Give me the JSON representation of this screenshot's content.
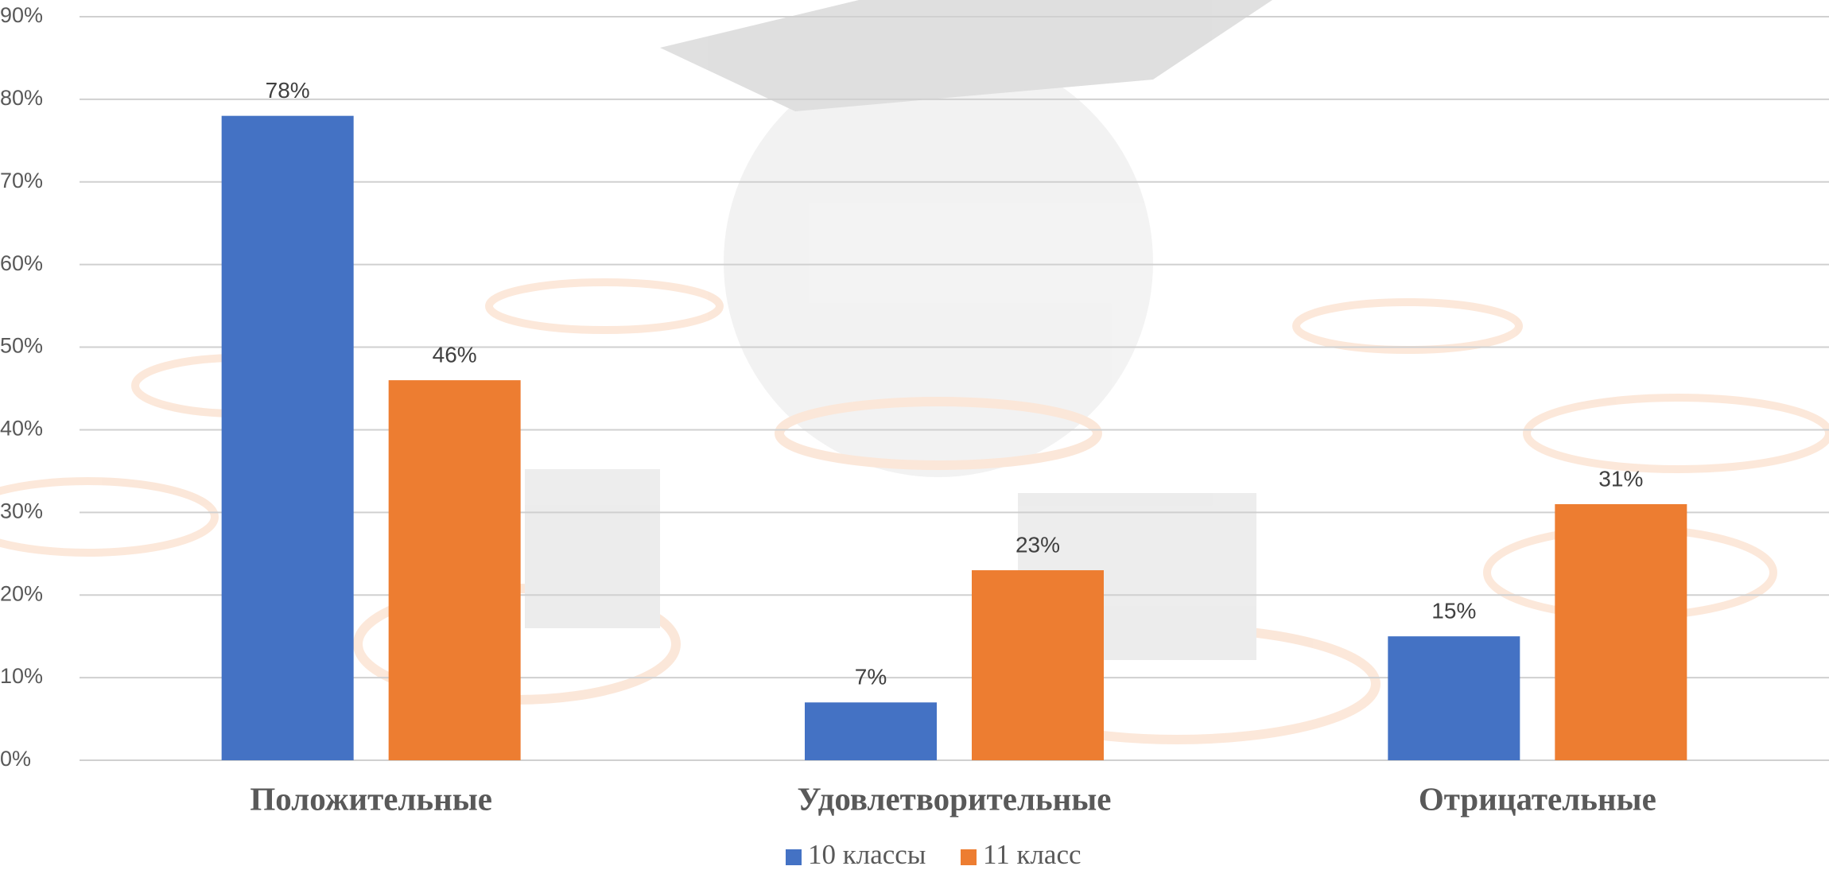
{
  "chart_data": {
    "type": "bar",
    "categories": [
      "Положительные",
      "Удовлетворительные",
      "Отрицательные"
    ],
    "series": [
      {
        "name": "10 классы",
        "color": "#4472c4",
        "values": [
          78,
          7,
          15
        ],
        "value_labels": [
          "78%",
          "7%",
          "15%"
        ]
      },
      {
        "name": "11 класс",
        "color": "#ed7d31",
        "values": [
          46,
          23,
          31
        ],
        "value_labels": [
          "46%",
          "23%",
          "31%"
        ]
      }
    ],
    "ylim": [
      0,
      90
    ],
    "yticks": [
      {
        "value": 0,
        "label": "0%"
      },
      {
        "value": 10,
        "label": "10%"
      },
      {
        "value": 20,
        "label": "20%"
      },
      {
        "value": 30,
        "label": "30%"
      },
      {
        "value": 40,
        "label": "40%"
      },
      {
        "value": 50,
        "label": "50%"
      },
      {
        "value": 60,
        "label": "60%"
      },
      {
        "value": 70,
        "label": "70%"
      },
      {
        "value": 80,
        "label": "80%"
      },
      {
        "value": 90,
        "label": "90%"
      }
    ],
    "grid": true,
    "legend": "bottom"
  }
}
